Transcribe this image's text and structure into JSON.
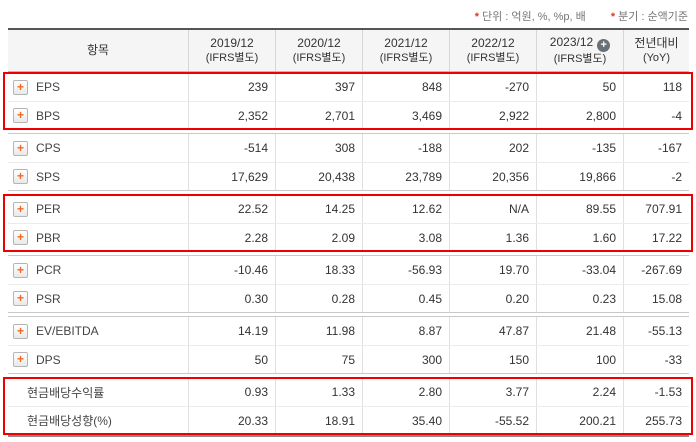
{
  "notes": [
    {
      "marker": "*",
      "label": "단위 : 억원, %, %p, 배"
    },
    {
      "marker": "*",
      "label": "분기 : 순액기준"
    }
  ],
  "header": {
    "item": "항목",
    "cols": [
      {
        "period": "2019/12",
        "basis": "(IFRS별도)"
      },
      {
        "period": "2020/12",
        "basis": "(IFRS별도)"
      },
      {
        "period": "2021/12",
        "basis": "(IFRS별도)"
      },
      {
        "period": "2022/12",
        "basis": "(IFRS별도)"
      },
      {
        "period": "2023/12",
        "basis": "(IFRS별도)",
        "add_icon": "+"
      }
    ],
    "yoy": {
      "period": "전년대비",
      "basis": "(YoY)"
    }
  },
  "colors": {
    "negative_value": "#e60000",
    "highlight_border": "#ee0000",
    "expand_icon_plus": "#f26822",
    "add_circle_bg": "#687078",
    "header_bg": "#f5f5f5"
  },
  "groups": [
    {
      "highlighted": true,
      "rows": [
        {
          "label": "EPS",
          "expand_icon": true,
          "values": [
            "239",
            "397",
            "848",
            "-270",
            "50",
            "118"
          ]
        },
        {
          "label": "BPS",
          "expand_icon": true,
          "values": [
            "2,352",
            "2,701",
            "3,469",
            "2,922",
            "2,800",
            "-4"
          ]
        }
      ]
    },
    {
      "highlighted": false,
      "rows": [
        {
          "label": "CPS",
          "expand_icon": true,
          "values": [
            "-514",
            "308",
            "-188",
            "202",
            "-135",
            "-167"
          ]
        },
        {
          "label": "SPS",
          "expand_icon": true,
          "values": [
            "17,629",
            "20,438",
            "23,789",
            "20,356",
            "19,866",
            "-2"
          ]
        }
      ]
    },
    {
      "highlighted": true,
      "rows": [
        {
          "label": "PER",
          "expand_icon": true,
          "values": [
            "22.52",
            "14.25",
            "12.62",
            "N/A",
            "89.55",
            "707.91"
          ]
        },
        {
          "label": "PBR",
          "expand_icon": true,
          "values": [
            "2.28",
            "2.09",
            "3.08",
            "1.36",
            "1.60",
            "17.22"
          ]
        }
      ]
    },
    {
      "highlighted": false,
      "rows": [
        {
          "label": "PCR",
          "expand_icon": true,
          "values": [
            "-10.46",
            "18.33",
            "-56.93",
            "19.70",
            "-33.04",
            "-267.69"
          ]
        },
        {
          "label": "PSR",
          "expand_icon": true,
          "values": [
            "0.30",
            "0.28",
            "0.45",
            "0.20",
            "0.23",
            "15.08"
          ]
        }
      ]
    },
    {
      "highlighted": false,
      "rows": [
        {
          "label": "EV/EBITDA",
          "expand_icon": true,
          "values": [
            "14.19",
            "11.98",
            "8.87",
            "47.87",
            "21.48",
            "-55.13"
          ]
        },
        {
          "label": "DPS",
          "expand_icon": true,
          "values": [
            "50",
            "75",
            "300",
            "150",
            "100",
            "-33"
          ]
        }
      ]
    },
    {
      "highlighted": true,
      "rows": [
        {
          "label": "현금배당수익률",
          "expand_icon": false,
          "values": [
            "0.93",
            "1.33",
            "2.80",
            "3.77",
            "2.24",
            "-1.53"
          ]
        },
        {
          "label": "현금배당성향(%)",
          "expand_icon": false,
          "values": [
            "20.33",
            "18.91",
            "35.40",
            "-55.52",
            "200.21",
            "255.73"
          ]
        }
      ]
    }
  ]
}
